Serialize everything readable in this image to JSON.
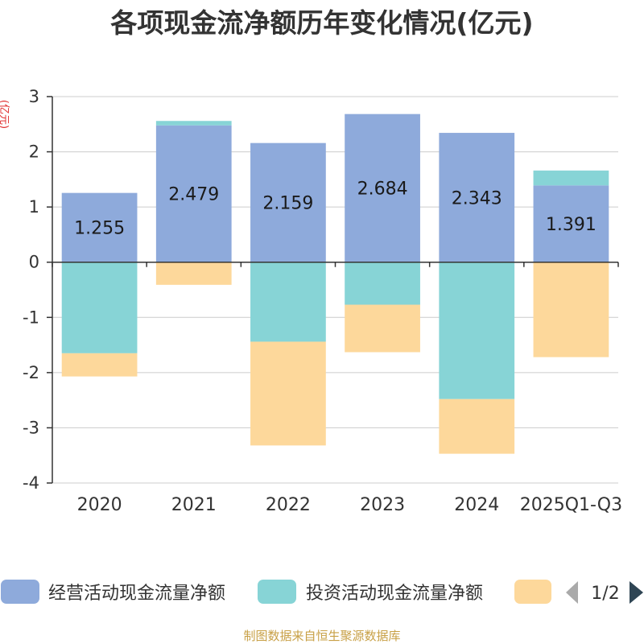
{
  "chart_data": {
    "type": "bar",
    "stacked": true,
    "title": "各项现金流净额历年变化情况(亿元)",
    "ylabel": "(亿元)",
    "xlabel": "",
    "categories": [
      "2020",
      "2021",
      "2022",
      "2023",
      "2024",
      "2025Q1-Q3"
    ],
    "ylim": [
      -4,
      3
    ],
    "yticks": [
      3,
      2,
      1,
      0,
      -1,
      -2,
      -3,
      -4
    ],
    "grid": true,
    "series": [
      {
        "name": "经营活动现金流量净额",
        "color": "#8eaadb",
        "values": [
          1.255,
          2.479,
          2.159,
          2.684,
          2.343,
          1.391
        ],
        "show_labels": true
      },
      {
        "name": "投资活动现金流量净额",
        "color": "#87d4d6",
        "values": [
          -1.65,
          0.08,
          -1.44,
          -0.77,
          -2.48,
          0.27
        ],
        "show_labels": false
      },
      {
        "name": "",
        "color": "#fdd89b",
        "values": [
          -0.42,
          -0.41,
          -1.88,
          -0.86,
          -0.99,
          -1.72
        ],
        "show_labels": false
      }
    ],
    "legend": {
      "position": "bottom",
      "page": "1/2"
    }
  },
  "source": "制图数据来自恒生聚源数据库"
}
